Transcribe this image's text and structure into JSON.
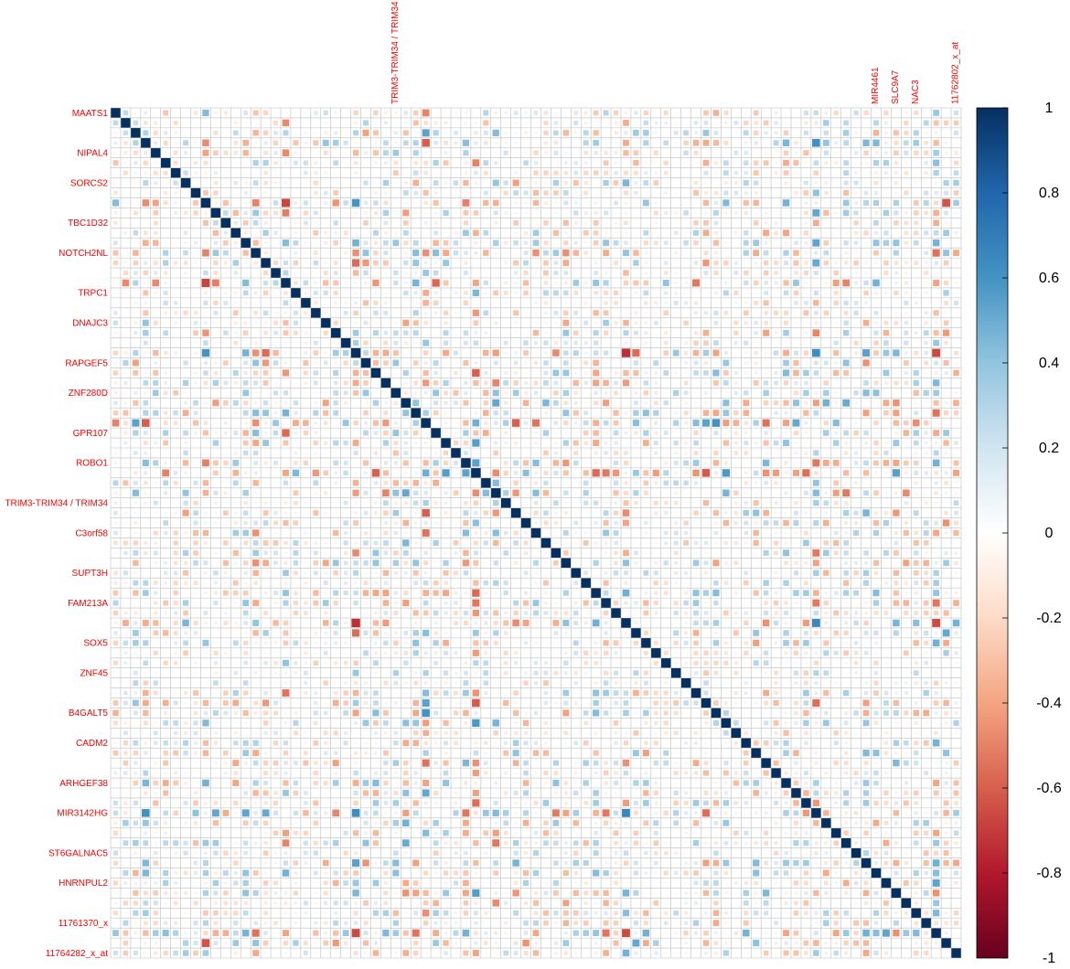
{
  "chart_data": {
    "type": "heatmap",
    "title": "",
    "subtitle": "",
    "n": 85,
    "diagonal_value": 1,
    "grid": true,
    "row_labels": [
      "MAATS1",
      "NIPAL4",
      "SORCS2",
      "TBC1D32",
      "NOTCH2NL",
      "TRPC1",
      "DNAJC3",
      "RAPGEF5",
      "ZNF280D",
      "GPR107",
      "ROBO1",
      "TRIM3-TRIM34 / TRIM34",
      "C3orf58",
      "SUPT3H",
      "FAM213A",
      "SOX5",
      "ZNF45",
      "B4GALT5",
      "CADM2",
      "ARHGEF38",
      "MIR3142HG",
      "ST6GALNAC5",
      "HNRNPUL2",
      "11761370_x",
      "11764282_x_at"
    ],
    "column_labels": [
      "TRIM3-TRIM34 / TRIM34",
      "MIR4461",
      "SLC9A7",
      "11762802_x_at",
      "NAC3"
    ],
    "colorbar": {
      "ticks": [
        1,
        0.8,
        0.6,
        0.4,
        0.2,
        0,
        -0.2,
        -0.4,
        -0.6,
        -0.8,
        -1
      ],
      "tick_labels": [
        "1",
        "0.8",
        "0.6",
        "0.4",
        "0.2",
        "0",
        "-0.2",
        "-0.4",
        "-0.6",
        "-0.8",
        "-1"
      ],
      "range": [
        -1,
        1
      ],
      "colors": [
        "#67001f",
        "#b2182b",
        "#d6604d",
        "#f4a582",
        "#fddbc7",
        "#ffffff",
        "#d1e5f0",
        "#92c5de",
        "#4393c3",
        "#2166ac",
        "#053061"
      ]
    },
    "label_color": "#ff0000",
    "grid_color": "#bebebe"
  }
}
